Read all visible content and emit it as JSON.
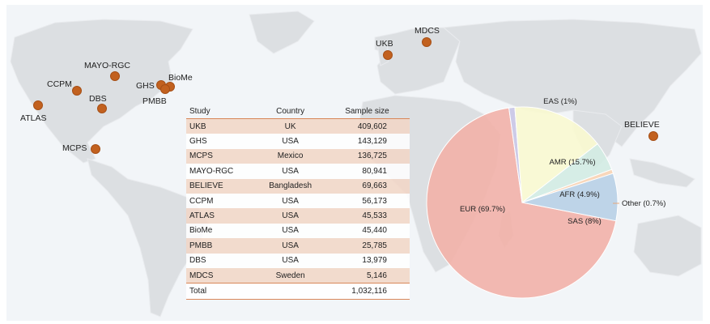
{
  "sites": [
    {
      "name": "ATLAS"
    },
    {
      "name": "CCPM"
    },
    {
      "name": "MAYO-RGC"
    },
    {
      "name": "DBS"
    },
    {
      "name": "MCPS"
    },
    {
      "name": "GHS"
    },
    {
      "name": "BioMe"
    },
    {
      "name": "PMBB"
    },
    {
      "name": "UKB"
    },
    {
      "name": "MDCS"
    },
    {
      "name": "BELIEVE"
    }
  ],
  "table": {
    "headers": {
      "study": "Study",
      "country": "Country",
      "sample_size": "Sample size"
    },
    "rows": [
      {
        "study": "UKB",
        "country": "UK",
        "sample_size": "409,602"
      },
      {
        "study": "GHS",
        "country": "USA",
        "sample_size": "143,129"
      },
      {
        "study": "MCPS",
        "country": "Mexico",
        "sample_size": "136,725"
      },
      {
        "study": "MAYO-RGC",
        "country": "USA",
        "sample_size": "80,941"
      },
      {
        "study": "BELIEVE",
        "country": "Bangladesh",
        "sample_size": "69,663"
      },
      {
        "study": "CCPM",
        "country": "USA",
        "sample_size": "56,173"
      },
      {
        "study": "ATLAS",
        "country": "USA",
        "sample_size": "45,533"
      },
      {
        "study": "BioMe",
        "country": "USA",
        "sample_size": "45,440"
      },
      {
        "study": "PMBB",
        "country": "USA",
        "sample_size": "25,785"
      },
      {
        "study": "DBS",
        "country": "USA",
        "sample_size": "13,979"
      },
      {
        "study": "MDCS",
        "country": "Sweden",
        "sample_size": "5,146"
      }
    ],
    "total": {
      "study": "Total",
      "country": "",
      "sample_size": "1,032,116"
    }
  },
  "chart_data": {
    "type": "pie",
    "slices": [
      {
        "label": "EUR (69.7%)",
        "value": 69.7,
        "color": "#f2b1a8"
      },
      {
        "label": "EAS (1%)",
        "value": 1.0,
        "color": "#c9c6e6"
      },
      {
        "label": "AMR (15.7%)",
        "value": 15.7,
        "color": "#fafad0"
      },
      {
        "label": "AFR (4.9%)",
        "value": 4.9,
        "color": "#d3ece3"
      },
      {
        "label": "Other (0.7%)",
        "value": 0.7,
        "color": "#f8d4b4"
      },
      {
        "label": "SAS (8%)",
        "value": 8.0,
        "color": "#b8d0e6"
      }
    ]
  },
  "colors": {
    "site_dot": "#c2611f",
    "row_shade": "#f2d6c6",
    "rule": "#d8875a"
  }
}
